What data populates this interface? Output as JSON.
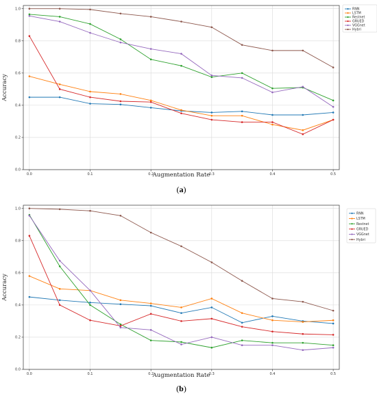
{
  "chart_data": [
    {
      "type": "line",
      "caption_letter": "a",
      "xlabel": "Augmentation Rate",
      "ylabel": "Accuracy",
      "xlim": [
        -0.01,
        0.51
      ],
      "ylim": [
        0.0,
        1.02
      ],
      "x_ticks": [
        "0.0",
        "0.1",
        "0.2",
        "0.3",
        "0.4",
        "0.5"
      ],
      "y_ticks": [
        "0.0",
        "0.2",
        "0.4",
        "0.6",
        "0.8",
        "1.0"
      ],
      "grid": true,
      "legend_position": "outside-top-right",
      "x": [
        0.0,
        0.05,
        0.1,
        0.15,
        0.2,
        0.25,
        0.3,
        0.35,
        0.4,
        0.45,
        0.5
      ],
      "series": [
        {
          "name": "RNN",
          "color": "#1f77b4",
          "values": [
            0.45,
            0.45,
            0.41,
            0.405,
            0.385,
            0.365,
            0.355,
            0.362,
            0.34,
            0.34,
            0.355
          ]
        },
        {
          "name": "LSTM",
          "color": "#ff7f0e",
          "values": [
            0.58,
            0.53,
            0.485,
            0.47,
            0.43,
            0.37,
            0.335,
            0.335,
            0.28,
            0.245,
            0.31
          ]
        },
        {
          "name": "Restnet",
          "color": "#2ca02c",
          "values": [
            0.965,
            0.95,
            0.905,
            0.81,
            0.685,
            0.645,
            0.575,
            0.6,
            0.505,
            0.51,
            0.43
          ]
        },
        {
          "name": "GRUED",
          "color": "#d62728",
          "values": [
            0.83,
            0.5,
            0.45,
            0.425,
            0.42,
            0.35,
            0.31,
            0.295,
            0.295,
            0.22,
            0.31
          ]
        },
        {
          "name": "VGGnet",
          "color": "#9467bd",
          "values": [
            0.955,
            0.92,
            0.85,
            0.79,
            0.75,
            0.72,
            0.585,
            0.57,
            0.48,
            0.515,
            0.39
          ]
        },
        {
          "name": "Hybri",
          "color": "#8c564b",
          "values": [
            1.0,
            1.0,
            0.995,
            0.97,
            0.95,
            0.92,
            0.885,
            0.775,
            0.74,
            0.74,
            0.635
          ]
        }
      ]
    },
    {
      "type": "line",
      "caption_letter": "b",
      "xlabel": "Augmentation Rate",
      "ylabel": "Accuracy",
      "xlim": [
        -0.01,
        0.51
      ],
      "ylim": [
        0.0,
        1.02
      ],
      "x_ticks": [
        "0.0",
        "0.1",
        "0.2",
        "0.3",
        "0.4",
        "0.5"
      ],
      "y_ticks": [
        "0.0",
        "0.2",
        "0.4",
        "0.6",
        "0.8",
        "1.0"
      ],
      "grid": true,
      "legend_position": "top-right",
      "x": [
        0.0,
        0.05,
        0.1,
        0.15,
        0.2,
        0.25,
        0.3,
        0.35,
        0.4,
        0.45,
        0.5
      ],
      "series": [
        {
          "name": "RNN",
          "color": "#1f77b4",
          "values": [
            0.45,
            0.43,
            0.415,
            0.405,
            0.395,
            0.35,
            0.385,
            0.29,
            0.33,
            0.3,
            0.285
          ]
        },
        {
          "name": "LSTM",
          "color": "#ff7f0e",
          "values": [
            0.58,
            0.5,
            0.49,
            0.43,
            0.41,
            0.385,
            0.44,
            0.35,
            0.305,
            0.295,
            0.305
          ]
        },
        {
          "name": "Restnet",
          "color": "#2ca02c",
          "values": [
            0.96,
            0.64,
            0.4,
            0.28,
            0.18,
            0.17,
            0.135,
            0.18,
            0.165,
            0.165,
            0.15
          ]
        },
        {
          "name": "GRUED",
          "color": "#d62728",
          "values": [
            0.83,
            0.4,
            0.305,
            0.27,
            0.345,
            0.3,
            0.315,
            0.265,
            0.235,
            0.22,
            0.215
          ]
        },
        {
          "name": "VGGnet",
          "color": "#9467bd",
          "values": [
            0.955,
            0.675,
            0.49,
            0.26,
            0.245,
            0.155,
            0.2,
            0.15,
            0.15,
            0.12,
            0.135
          ]
        },
        {
          "name": "Hybri",
          "color": "#8c564b",
          "values": [
            1.0,
            0.995,
            0.985,
            0.955,
            0.85,
            0.765,
            0.665,
            0.55,
            0.44,
            0.42,
            0.365
          ]
        }
      ]
    }
  ]
}
